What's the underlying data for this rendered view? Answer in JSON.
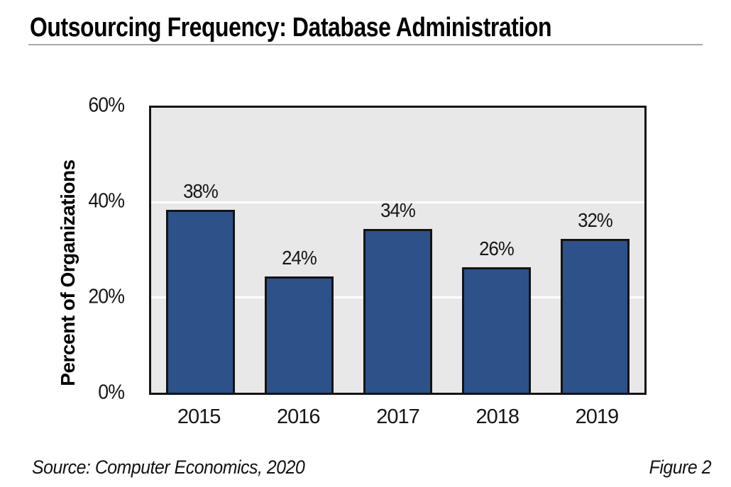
{
  "header": {
    "title": "Outsourcing Frequency: Database Administration"
  },
  "footer": {
    "source": "Source: Computer Economics, 2020",
    "figure": "Figure 2"
  },
  "colors": {
    "bar_fill": "#2d5189",
    "bar_border": "#141414",
    "plot_background": "#e8e8e8",
    "gridline": "#ffffff",
    "text": "#000000",
    "title_rule": "#a8a8a8"
  },
  "chart_data": {
    "type": "bar",
    "title": "Outsourcing Frequency: Database Administration",
    "categories": [
      "2015",
      "2016",
      "2017",
      "2018",
      "2019"
    ],
    "values": [
      38,
      24,
      34,
      26,
      32
    ],
    "value_labels": [
      "38%",
      "24%",
      "34%",
      "26%",
      "32%"
    ],
    "xlabel": "",
    "ylabel": "Percent of Organizations",
    "ylim": [
      0,
      60
    ],
    "yticks": [
      0,
      20,
      40,
      60
    ],
    "ytick_labels": [
      "0%",
      "20%",
      "40%",
      "60%"
    ],
    "gridlines": [
      20,
      40
    ],
    "legend": false,
    "grid": true
  }
}
